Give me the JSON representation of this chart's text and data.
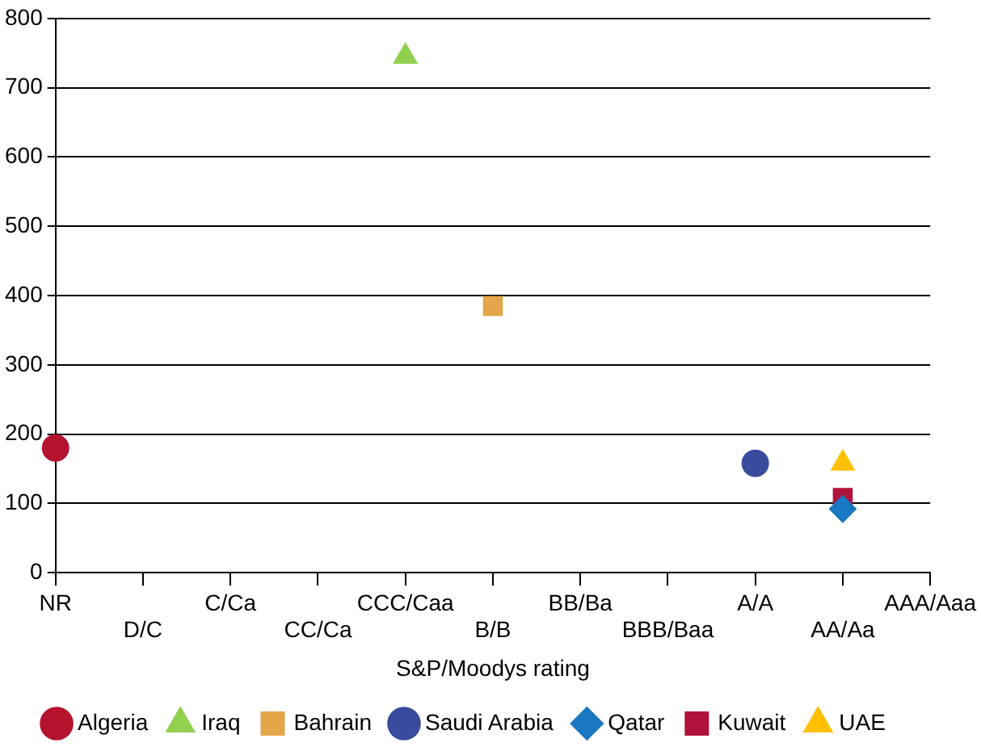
{
  "chart_data": {
    "type": "scatter",
    "xlabel": "S&P/Moodys rating",
    "categories": [
      "NR",
      "D/C",
      "C/Ca",
      "CC/Ca",
      "CCC/Caa",
      "B/B",
      "BB/Ba",
      "BBB/Baa",
      "A/A",
      "AA/Aa",
      "AAA/Aaa"
    ],
    "ylim": [
      0,
      800
    ],
    "yticks": [
      0,
      100,
      200,
      300,
      400,
      500,
      600,
      700,
      800
    ],
    "grid": "y",
    "legend": "bottom",
    "series": [
      {
        "name": "Algeria",
        "color": "#b5132e",
        "marker": "circle",
        "x": [
          "NR"
        ],
        "values": [
          180
        ]
      },
      {
        "name": "Iraq",
        "color": "#92d050",
        "marker": "triangle",
        "x": [
          "CCC/Caa"
        ],
        "values": [
          745
        ]
      },
      {
        "name": "Bahrain",
        "color": "#e3a74a",
        "marker": "square",
        "x": [
          "B/B"
        ],
        "values": [
          385
        ]
      },
      {
        "name": "Saudi Arabia",
        "color": "#3a4a9c",
        "marker": "circle",
        "x": [
          "A/A"
        ],
        "values": [
          158
        ]
      },
      {
        "name": "Qatar",
        "color": "#1a78c2",
        "marker": "diamond",
        "x": [
          "AA/Aa"
        ],
        "values": [
          92
        ]
      },
      {
        "name": "Kuwait",
        "color": "#b0123b",
        "marker": "square",
        "x": [
          "AA/Aa"
        ],
        "values": [
          108
        ]
      },
      {
        "name": "UAE",
        "color": "#ffc000",
        "marker": "triangle",
        "x": [
          "AA/Aa"
        ],
        "values": [
          158
        ]
      }
    ]
  }
}
